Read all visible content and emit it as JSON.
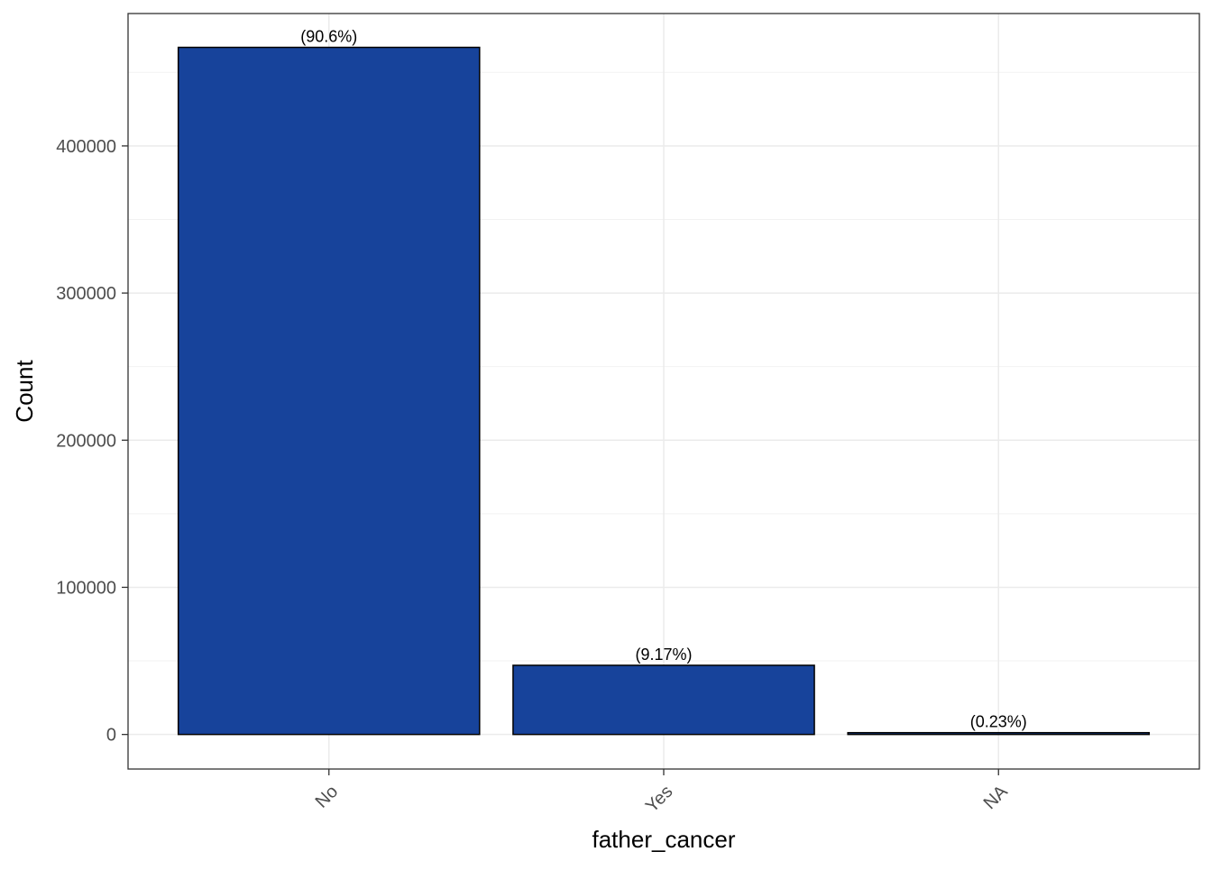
{
  "chart_data": {
    "type": "bar",
    "title": "",
    "xlabel": "father_cancer",
    "ylabel": "Count",
    "categories": [
      "No",
      "Yes",
      "NA"
    ],
    "values": [
      467000,
      47000,
      1200
    ],
    "labels": [
      "(90.6%)",
      "(9.17%)",
      "(0.23%)"
    ],
    "ylim": [
      -23500,
      490000
    ],
    "yticks": [
      0,
      100000,
      200000,
      300000,
      400000
    ],
    "ytick_labels": [
      "0",
      "100000",
      "200000",
      "300000",
      "400000"
    ],
    "grid": true,
    "bar_color": "#17439B",
    "bar_edge_color": "#000000",
    "x_tick_rotation_deg": -45
  }
}
